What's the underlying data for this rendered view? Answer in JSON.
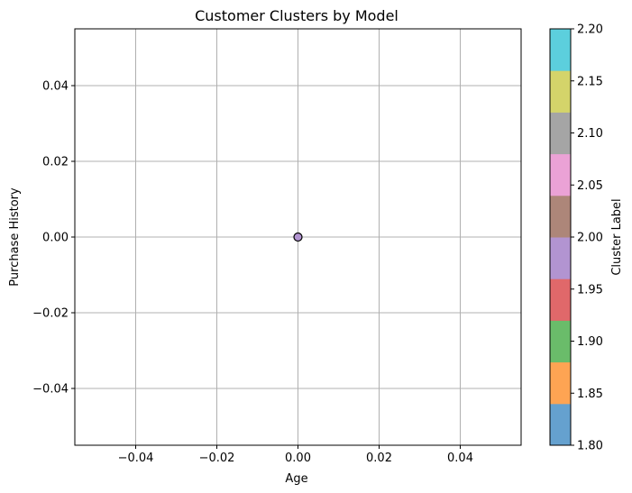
{
  "chart_data": {
    "type": "scatter",
    "title": "Customer Clusters by Model",
    "xlabel": "Age",
    "ylabel": "Purchase History",
    "xlim": [
      -0.055,
      0.055
    ],
    "ylim": [
      -0.055,
      0.055
    ],
    "x_ticks": [
      {
        "value": -0.04,
        "label": "−0.04"
      },
      {
        "value": -0.02,
        "label": "−0.02"
      },
      {
        "value": 0.0,
        "label": "0.00"
      },
      {
        "value": 0.02,
        "label": "0.02"
      },
      {
        "value": 0.04,
        "label": "0.04"
      }
    ],
    "y_ticks": [
      {
        "value": -0.04,
        "label": "−0.04"
      },
      {
        "value": -0.02,
        "label": "−0.02"
      },
      {
        "value": 0.0,
        "label": "0.00"
      },
      {
        "value": 0.02,
        "label": "0.02"
      },
      {
        "value": 0.04,
        "label": "0.04"
      }
    ],
    "grid": true,
    "points": [
      {
        "x": 0.0,
        "y": 0.0,
        "cluster": 2.0,
        "color": "#b294d1"
      }
    ],
    "colorbar": {
      "label": "Cluster Label",
      "range": [
        1.8,
        2.2
      ],
      "colors": [
        "#65a1cf",
        "#fea453",
        "#6abc6a",
        "#e0686a",
        "#b294d1",
        "#ad8679",
        "#eba2d6",
        "#a5a5a5",
        "#d4d46a",
        "#5ccfdd"
      ],
      "ticks": [
        {
          "value": 1.8,
          "label": "1.80"
        },
        {
          "value": 1.85,
          "label": "1.85"
        },
        {
          "value": 1.9,
          "label": "1.90"
        },
        {
          "value": 1.95,
          "label": "1.95"
        },
        {
          "value": 2.0,
          "label": "2.00"
        },
        {
          "value": 2.05,
          "label": "2.05"
        },
        {
          "value": 2.1,
          "label": "2.10"
        },
        {
          "value": 2.15,
          "label": "2.15"
        },
        {
          "value": 2.2,
          "label": "2.20"
        }
      ]
    }
  }
}
